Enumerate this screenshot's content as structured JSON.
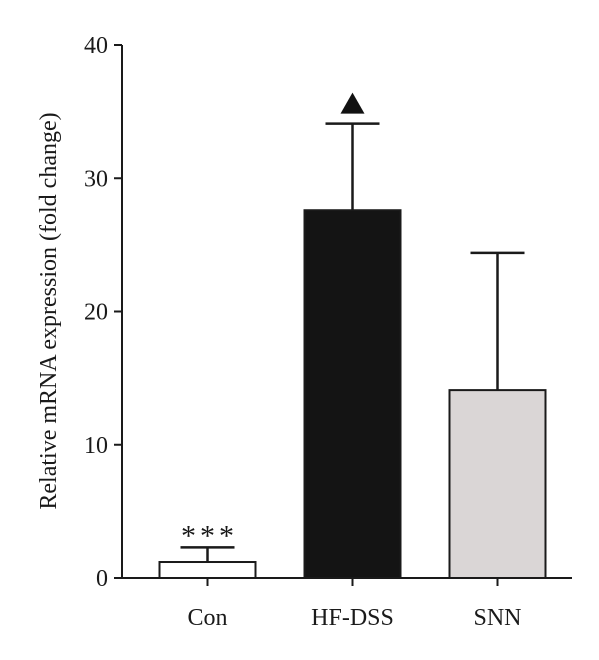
{
  "chart_data": {
    "type": "bar",
    "title": "",
    "xlabel": "",
    "ylabel": "Relative mRNA expression (fold change)",
    "ylim": [
      0,
      40
    ],
    "yticks": [
      0,
      10,
      20,
      30,
      40
    ],
    "categories": [
      "Con",
      "HF-DSS",
      "SNN"
    ],
    "values": [
      1.2,
      27.6,
      14.1
    ],
    "error_upper": [
      2.3,
      34.1,
      24.4
    ],
    "bar_colors": [
      "#ffffff",
      "#141414",
      "#dad6d6"
    ],
    "annotations": [
      "***",
      "▲",
      ""
    ],
    "grid": false,
    "legend": "none"
  }
}
